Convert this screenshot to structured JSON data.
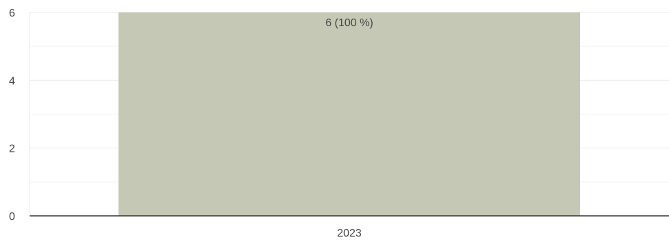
{
  "chart_data": {
    "type": "bar",
    "categories": [
      "2023"
    ],
    "series": [
      {
        "values": [
          6
        ],
        "data_labels": [
          "6 (100 %)"
        ]
      }
    ],
    "ylim": [
      0,
      6
    ],
    "y_ticks": [
      0,
      2,
      4,
      6
    ],
    "y_tick_labels": [
      "0",
      "2",
      "4",
      "6"
    ],
    "y_minor_grid": [
      1,
      3,
      5
    ],
    "grid": true,
    "legend": "none",
    "colors": {
      "bar": "#c4c8b5",
      "grid_major": "#ebebeb",
      "grid_minor": "#f3f3f3",
      "axis": "#333333",
      "text": "#444444"
    }
  }
}
